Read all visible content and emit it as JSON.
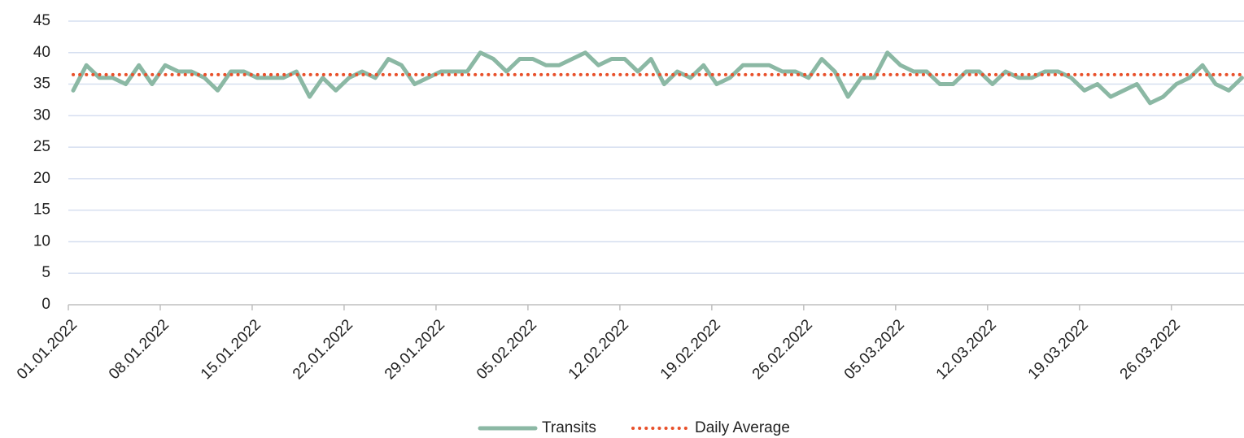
{
  "chart_data": {
    "type": "line",
    "categories": [
      "01.01.2022",
      null,
      null,
      null,
      null,
      null,
      null,
      "08.01.2022",
      null,
      null,
      null,
      null,
      null,
      null,
      "15.01.2022",
      null,
      null,
      null,
      null,
      null,
      null,
      "22.01.2022",
      null,
      null,
      null,
      null,
      null,
      null,
      "29.01.2022",
      null,
      null,
      null,
      null,
      null,
      null,
      "05.02.2022",
      null,
      null,
      null,
      null,
      null,
      null,
      "12.02.2022",
      null,
      null,
      null,
      null,
      null,
      null,
      "19.02.2022",
      null,
      null,
      null,
      null,
      null,
      null,
      "26.02.2022",
      null,
      null,
      null,
      null,
      null,
      null,
      "05.03.2022",
      null,
      null,
      null,
      null,
      null,
      null,
      "12.03.2022",
      null,
      null,
      null,
      null,
      null,
      null,
      "19.03.2022",
      null,
      null,
      null,
      null,
      null,
      null,
      "26.03.2022",
      null,
      null,
      null,
      null,
      null
    ],
    "series": [
      {
        "name": "Transits",
        "color": "#8bb8a4",
        "style": "solid",
        "values": [
          34,
          38,
          36,
          36,
          35,
          38,
          35,
          38,
          37,
          37,
          36,
          34,
          37,
          37,
          36,
          36,
          36,
          37,
          33,
          36,
          34,
          36,
          37,
          36,
          39,
          38,
          35,
          36,
          37,
          37,
          37,
          40,
          39,
          37,
          39,
          39,
          38,
          38,
          39,
          40,
          38,
          39,
          39,
          37,
          39,
          35,
          37,
          36,
          38,
          35,
          36,
          38,
          38,
          38,
          37,
          37,
          36,
          39,
          37,
          33,
          36,
          36,
          40,
          38,
          37,
          37,
          35,
          35,
          37,
          37,
          35,
          37,
          36,
          36,
          37,
          37,
          36,
          34,
          35,
          33,
          34,
          35,
          32,
          33,
          35,
          36,
          38,
          35,
          34,
          36
        ]
      },
      {
        "name": "Daily Average",
        "color": "#e8502a",
        "style": "dotted",
        "values": [
          36.5,
          36.5,
          36.5,
          36.5,
          36.5,
          36.5,
          36.5,
          36.5,
          36.5,
          36.5,
          36.5,
          36.5,
          36.5,
          36.5,
          36.5,
          36.5,
          36.5,
          36.5,
          36.5,
          36.5,
          36.5,
          36.5,
          36.5,
          36.5,
          36.5,
          36.5,
          36.5,
          36.5,
          36.5,
          36.5,
          36.5,
          36.5,
          36.5,
          36.5,
          36.5,
          36.5,
          36.5,
          36.5,
          36.5,
          36.5,
          36.5,
          36.5,
          36.5,
          36.5,
          36.5,
          36.5,
          36.5,
          36.5,
          36.5,
          36.5,
          36.5,
          36.5,
          36.5,
          36.5,
          36.5,
          36.5,
          36.5,
          36.5,
          36.5,
          36.5,
          36.5,
          36.5,
          36.5,
          36.5,
          36.5,
          36.5,
          36.5,
          36.5,
          36.5,
          36.5,
          36.5,
          36.5,
          36.5,
          36.5,
          36.5,
          36.5,
          36.5,
          36.5,
          36.5,
          36.5,
          36.5,
          36.5,
          36.5,
          36.5,
          36.5,
          36.5,
          36.5,
          36.5,
          36.5,
          36.5
        ]
      }
    ],
    "ylim": [
      0,
      45
    ],
    "yticks": [
      0,
      5,
      10,
      15,
      20,
      25,
      30,
      35,
      40,
      45
    ],
    "grid": true,
    "legend": "bottom"
  }
}
